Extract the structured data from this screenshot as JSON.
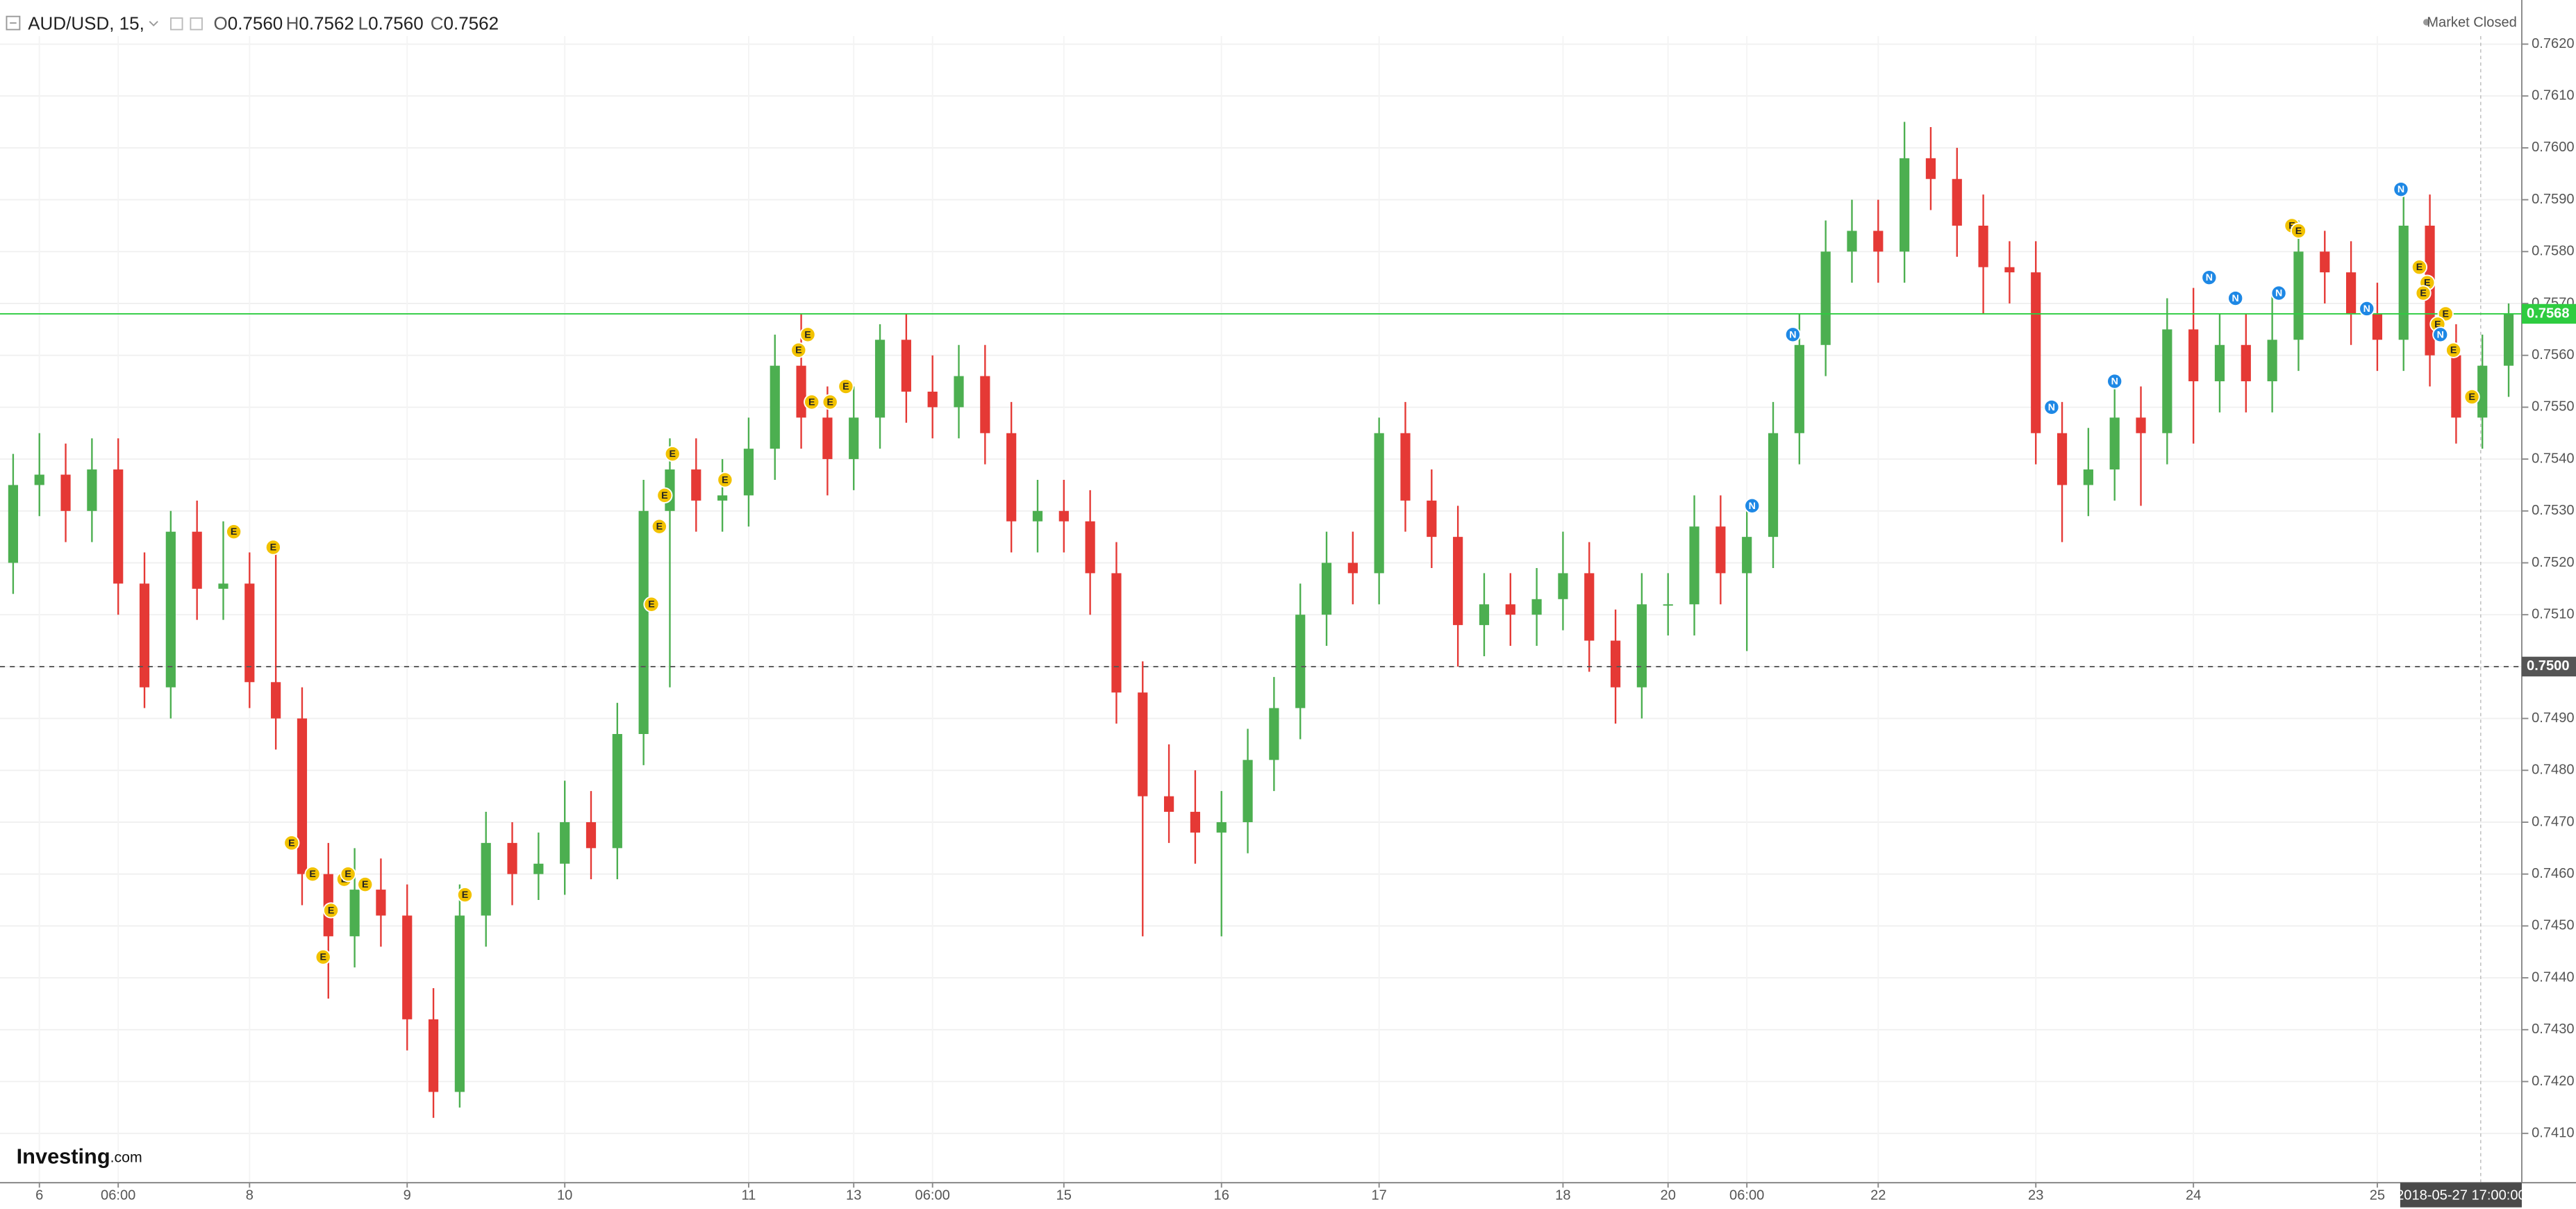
{
  "header": {
    "symbol": "AUD/USD, 15,",
    "ohlc": [
      {
        "label": "O",
        "value": "0.7560"
      },
      {
        "label": "H",
        "value": "0.7562"
      },
      {
        "label": "L",
        "value": "0.7560"
      },
      {
        "label": "C",
        "value": "0.7562"
      }
    ],
    "status": "Market Closed"
  },
  "logo": {
    "name": "Investing",
    "suffix": ".com"
  },
  "chart_data": {
    "type": "candlestick",
    "categories": [
      null,
      "6",
      null,
      null,
      "06:00",
      null,
      null,
      null,
      null,
      "8",
      null,
      null,
      null,
      null,
      null,
      "9",
      null,
      null,
      null,
      null,
      null,
      "10",
      null,
      null,
      null,
      null,
      null,
      null,
      "11",
      null,
      null,
      null,
      "13",
      null,
      null,
      "06:00",
      null,
      null,
      null,
      null,
      "15",
      null,
      null,
      null,
      null,
      null,
      "16",
      null,
      null,
      null,
      null,
      null,
      "17",
      null,
      null,
      null,
      null,
      null,
      null,
      "18",
      null,
      null,
      null,
      "20",
      null,
      null,
      "06:00",
      null,
      null,
      null,
      null,
      "22",
      null,
      null,
      null,
      null,
      null,
      "23",
      null,
      null,
      null,
      null,
      null,
      "24",
      null,
      null,
      null,
      null,
      null,
      null,
      "25",
      null,
      null,
      null,
      null,
      null
    ],
    "open": [
      0.752,
      0.7535,
      0.7537,
      0.753,
      0.7538,
      0.7516,
      0.7496,
      0.7526,
      0.7515,
      0.7516,
      0.7497,
      0.749,
      0.746,
      0.7448,
      0.7457,
      0.7452,
      0.7432,
      0.7418,
      0.7452,
      0.7466,
      0.746,
      0.7462,
      0.747,
      0.7465,
      0.7487,
      0.753,
      0.7538,
      0.7532,
      0.7533,
      0.7542,
      0.7558,
      0.7548,
      0.754,
      0.7548,
      0.7563,
      0.7553,
      0.755,
      0.7556,
      0.7545,
      0.7528,
      0.753,
      0.7528,
      0.7518,
      0.7495,
      0.7475,
      0.7472,
      0.7468,
      0.747,
      0.7482,
      0.7492,
      0.751,
      0.752,
      0.7518,
      0.7545,
      0.7532,
      0.7525,
      0.7508,
      0.7512,
      0.751,
      0.7513,
      0.7518,
      0.7505,
      0.7496,
      0.7512,
      0.7512,
      0.7527,
      0.7518,
      0.7525,
      0.7545,
      0.7562,
      0.758,
      0.7584,
      0.758,
      0.7598,
      0.7594,
      0.7585,
      0.7577,
      0.7576,
      0.7545,
      0.7535,
      0.7538,
      0.7548,
      0.7545,
      0.7565,
      0.7555,
      0.7562,
      0.7555,
      0.7563,
      0.758,
      0.7576,
      0.7568,
      0.7563,
      0.7585,
      0.756,
      0.7548,
      0.7558
    ],
    "high": [
      0.7541,
      0.7545,
      0.7543,
      0.7544,
      0.7544,
      0.7522,
      0.753,
      0.7532,
      0.7528,
      0.7522,
      0.7523,
      0.7496,
      0.7466,
      0.7465,
      0.7463,
      0.7458,
      0.7438,
      0.7458,
      0.7472,
      0.747,
      0.7468,
      0.7478,
      0.7476,
      0.7493,
      0.7536,
      0.7544,
      0.7544,
      0.754,
      0.7548,
      0.7564,
      0.7568,
      0.7554,
      0.7554,
      0.7566,
      0.7568,
      0.756,
      0.7562,
      0.7562,
      0.7551,
      0.7536,
      0.7536,
      0.7534,
      0.7524,
      0.7501,
      0.7485,
      0.748,
      0.7476,
      0.7488,
      0.7498,
      0.7516,
      0.7526,
      0.7526,
      0.7548,
      0.7551,
      0.7538,
      0.7531,
      0.7518,
      0.7518,
      0.7519,
      0.7526,
      0.7524,
      0.7511,
      0.7518,
      0.7518,
      0.7533,
      0.7533,
      0.7531,
      0.7551,
      0.7568,
      0.7586,
      0.759,
      0.759,
      0.7605,
      0.7604,
      0.76,
      0.7591,
      0.7582,
      0.7582,
      0.7551,
      0.7546,
      0.7556,
      0.7554,
      0.7571,
      0.7573,
      0.7568,
      0.7568,
      0.7572,
      0.7586,
      0.7584,
      0.7582,
      0.7574,
      0.7591,
      0.7591,
      0.7566,
      0.7564,
      0.757
    ],
    "low": [
      0.7514,
      0.7529,
      0.7524,
      0.7524,
      0.751,
      0.7492,
      0.749,
      0.7509,
      0.7509,
      0.7492,
      0.7484,
      0.7454,
      0.7436,
      0.7442,
      0.7446,
      0.7426,
      0.7413,
      0.7415,
      0.7446,
      0.7454,
      0.7455,
      0.7456,
      0.7459,
      0.7459,
      0.7481,
      0.7496,
      0.7526,
      0.7526,
      0.7527,
      0.7536,
      0.7542,
      0.7533,
      0.7534,
      0.7542,
      0.7547,
      0.7544,
      0.7544,
      0.7539,
      0.7522,
      0.7522,
      0.7522,
      0.751,
      0.7489,
      0.7448,
      0.7466,
      0.7462,
      0.7448,
      0.7464,
      0.7476,
      0.7486,
      0.7504,
      0.7512,
      0.7512,
      0.7526,
      0.7519,
      0.75,
      0.7502,
      0.7504,
      0.7504,
      0.7507,
      0.7499,
      0.7489,
      0.749,
      0.7506,
      0.7506,
      0.7512,
      0.7503,
      0.7519,
      0.7539,
      0.7556,
      0.7574,
      0.7574,
      0.7574,
      0.7588,
      0.7579,
      0.7568,
      0.757,
      0.7539,
      0.7524,
      0.7529,
      0.7532,
      0.7531,
      0.7539,
      0.7543,
      0.7549,
      0.7549,
      0.7549,
      0.7557,
      0.757,
      0.7562,
      0.7557,
      0.7557,
      0.7554,
      0.7543,
      0.7542,
      0.7552
    ],
    "close": [
      0.7535,
      0.7537,
      0.753,
      0.7538,
      0.7516,
      0.7496,
      0.7526,
      0.7515,
      0.7516,
      0.7497,
      0.749,
      0.746,
      0.7448,
      0.7457,
      0.7452,
      0.7432,
      0.7418,
      0.7452,
      0.7466,
      0.746,
      0.7462,
      0.747,
      0.7465,
      0.7487,
      0.753,
      0.7538,
      0.7532,
      0.7533,
      0.7542,
      0.7558,
      0.7548,
      0.754,
      0.7548,
      0.7563,
      0.7553,
      0.755,
      0.7556,
      0.7545,
      0.7528,
      0.753,
      0.7528,
      0.7518,
      0.7495,
      0.7475,
      0.7472,
      0.7468,
      0.747,
      0.7482,
      0.7492,
      0.751,
      0.752,
      0.7518,
      0.7545,
      0.7532,
      0.7525,
      0.7508,
      0.7512,
      0.751,
      0.7513,
      0.7518,
      0.7505,
      0.7496,
      0.7512,
      0.7512,
      0.7527,
      0.7518,
      0.7525,
      0.7545,
      0.7562,
      0.758,
      0.7584,
      0.758,
      0.7598,
      0.7594,
      0.7585,
      0.7577,
      0.7576,
      0.7545,
      0.7535,
      0.7538,
      0.7548,
      0.7545,
      0.7565,
      0.7555,
      0.7562,
      0.7555,
      0.7563,
      0.758,
      0.7576,
      0.7568,
      0.7563,
      0.7585,
      0.756,
      0.7548,
      0.7558,
      0.7568
    ],
    "up_color": "#4caf50",
    "down_color": "#e53935",
    "ylim": [
      0.74005,
      0.76285
    ],
    "yticks": [
      {
        "value": 0.741,
        "label": "0.7410"
      },
      {
        "value": 0.742,
        "label": "0.7420"
      },
      {
        "value": 0.743,
        "label": "0.7430"
      },
      {
        "value": 0.744,
        "label": "0.7440"
      },
      {
        "value": 0.745,
        "label": "0.7450"
      },
      {
        "value": 0.746,
        "label": "0.7460"
      },
      {
        "value": 0.747,
        "label": "0.7470"
      },
      {
        "value": 0.748,
        "label": "0.7480"
      },
      {
        "value": 0.749,
        "label": "0.7490"
      },
      {
        "value": 0.75,
        "label": "0.7500"
      },
      {
        "value": 0.751,
        "label": "0.7510"
      },
      {
        "value": 0.752,
        "label": "0.7520"
      },
      {
        "value": 0.753,
        "label": "0.7530"
      },
      {
        "value": 0.754,
        "label": "0.7540"
      },
      {
        "value": 0.755,
        "label": "0.7550"
      },
      {
        "value": 0.756,
        "label": "0.7560"
      },
      {
        "value": 0.757,
        "label": "0.7570"
      },
      {
        "value": 0.758,
        "label": "0.7580"
      },
      {
        "value": 0.759,
        "label": "0.7590"
      },
      {
        "value": 0.76,
        "label": "0.7600"
      },
      {
        "value": 0.761,
        "label": "0.7610"
      },
      {
        "value": 0.762,
        "label": "0.7620"
      }
    ],
    "grid": true,
    "price_lines": [
      {
        "value": 0.7568,
        "label": "0.7568",
        "color": "#2ecc40",
        "style": "solid"
      },
      {
        "value": 0.75,
        "label": "0.7500",
        "color": "#555555",
        "style": "dashed"
      }
    ],
    "cursor_time": "2018-05-27 17:00:00",
    "event_colors": {
      "E": "#f2c200",
      "N": "#1e88e5"
    },
    "events": [
      {
        "label": "E",
        "x": 8.4,
        "y": 0.7526
      },
      {
        "label": "E",
        "x": 9.9,
        "y": 0.7523
      },
      {
        "label": "E",
        "x": 10.6,
        "y": 0.7466
      },
      {
        "label": "E",
        "x": 11.4,
        "y": 0.746
      },
      {
        "label": "E",
        "x": 12.1,
        "y": 0.7453
      },
      {
        "label": "E",
        "x": 11.8,
        "y": 0.7444
      },
      {
        "label": "E",
        "x": 12.6,
        "y": 0.7459
      },
      {
        "label": "E",
        "x": 12.75,
        "y": 0.746
      },
      {
        "label": "E",
        "x": 13.4,
        "y": 0.7458
      },
      {
        "label": "E",
        "x": 17.2,
        "y": 0.7456
      },
      {
        "label": "E",
        "x": 24.3,
        "y": 0.7512
      },
      {
        "label": "E",
        "x": 24.6,
        "y": 0.7527
      },
      {
        "label": "E",
        "x": 24.8,
        "y": 0.7533
      },
      {
        "label": "E",
        "x": 25.1,
        "y": 0.7541
      },
      {
        "label": "E",
        "x": 27.1,
        "y": 0.7536
      },
      {
        "label": "E",
        "x": 29.9,
        "y": 0.7561
      },
      {
        "label": "E",
        "x": 30.25,
        "y": 0.7564
      },
      {
        "label": "E",
        "x": 30.4,
        "y": 0.7551
      },
      {
        "label": "E",
        "x": 31.1,
        "y": 0.7551
      },
      {
        "label": "E",
        "x": 31.7,
        "y": 0.7554
      },
      {
        "label": "N",
        "x": 66.2,
        "y": 0.7531
      },
      {
        "label": "N",
        "x": 67.75,
        "y": 0.7564
      },
      {
        "label": "N",
        "x": 77.6,
        "y": 0.755
      },
      {
        "label": "N",
        "x": 80,
        "y": 0.7555
      },
      {
        "label": "N",
        "x": 83.6,
        "y": 0.7575
      },
      {
        "label": "N",
        "x": 84.6,
        "y": 0.7571
      },
      {
        "label": "N",
        "x": 86.25,
        "y": 0.7572
      },
      {
        "label": "E",
        "x": 86.75,
        "y": 0.7585
      },
      {
        "label": "E",
        "x": 87,
        "y": 0.7584
      },
      {
        "label": "N",
        "x": 89.6,
        "y": 0.7569
      },
      {
        "label": "N",
        "x": 90.9,
        "y": 0.7592
      },
      {
        "label": "E",
        "x": 91.6,
        "y": 0.7577
      },
      {
        "label": "E",
        "x": 91.9,
        "y": 0.7574
      },
      {
        "label": "E",
        "x": 91.75,
        "y": 0.7572
      },
      {
        "label": "E",
        "x": 92.6,
        "y": 0.7568
      },
      {
        "label": "E",
        "x": 92.3,
        "y": 0.7566
      },
      {
        "label": "N",
        "x": 92.4,
        "y": 0.7564
      },
      {
        "label": "E",
        "x": 92.9,
        "y": 0.7561
      },
      {
        "label": "E",
        "x": 93.6,
        "y": 0.7552
      }
    ]
  }
}
